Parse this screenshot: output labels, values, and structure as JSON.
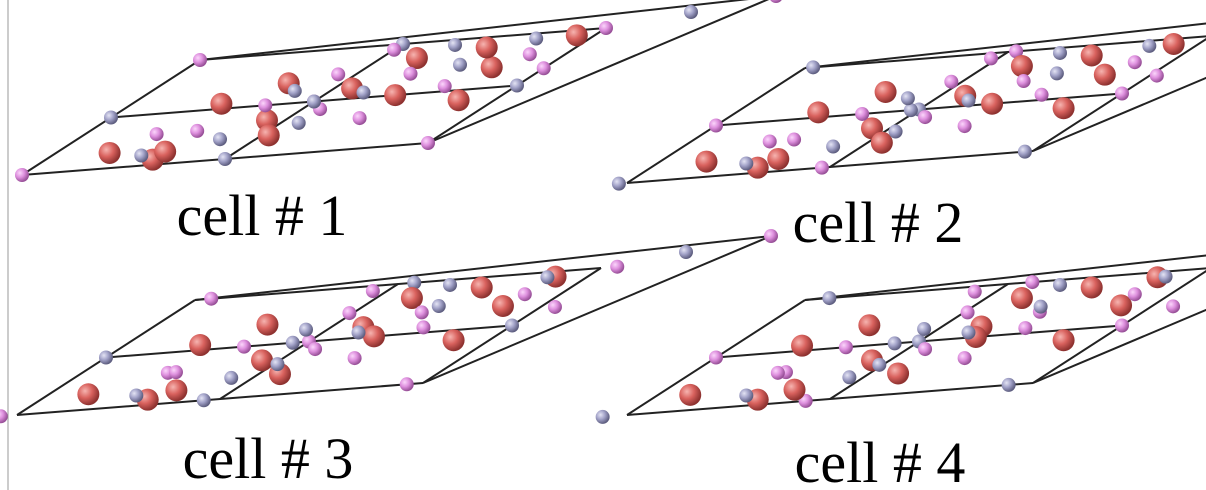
{
  "cells": [
    {
      "label": "cell # 1"
    },
    {
      "label": "cell # 2"
    },
    {
      "label": "cell # 3"
    },
    {
      "label": "cell # 4"
    }
  ]
}
